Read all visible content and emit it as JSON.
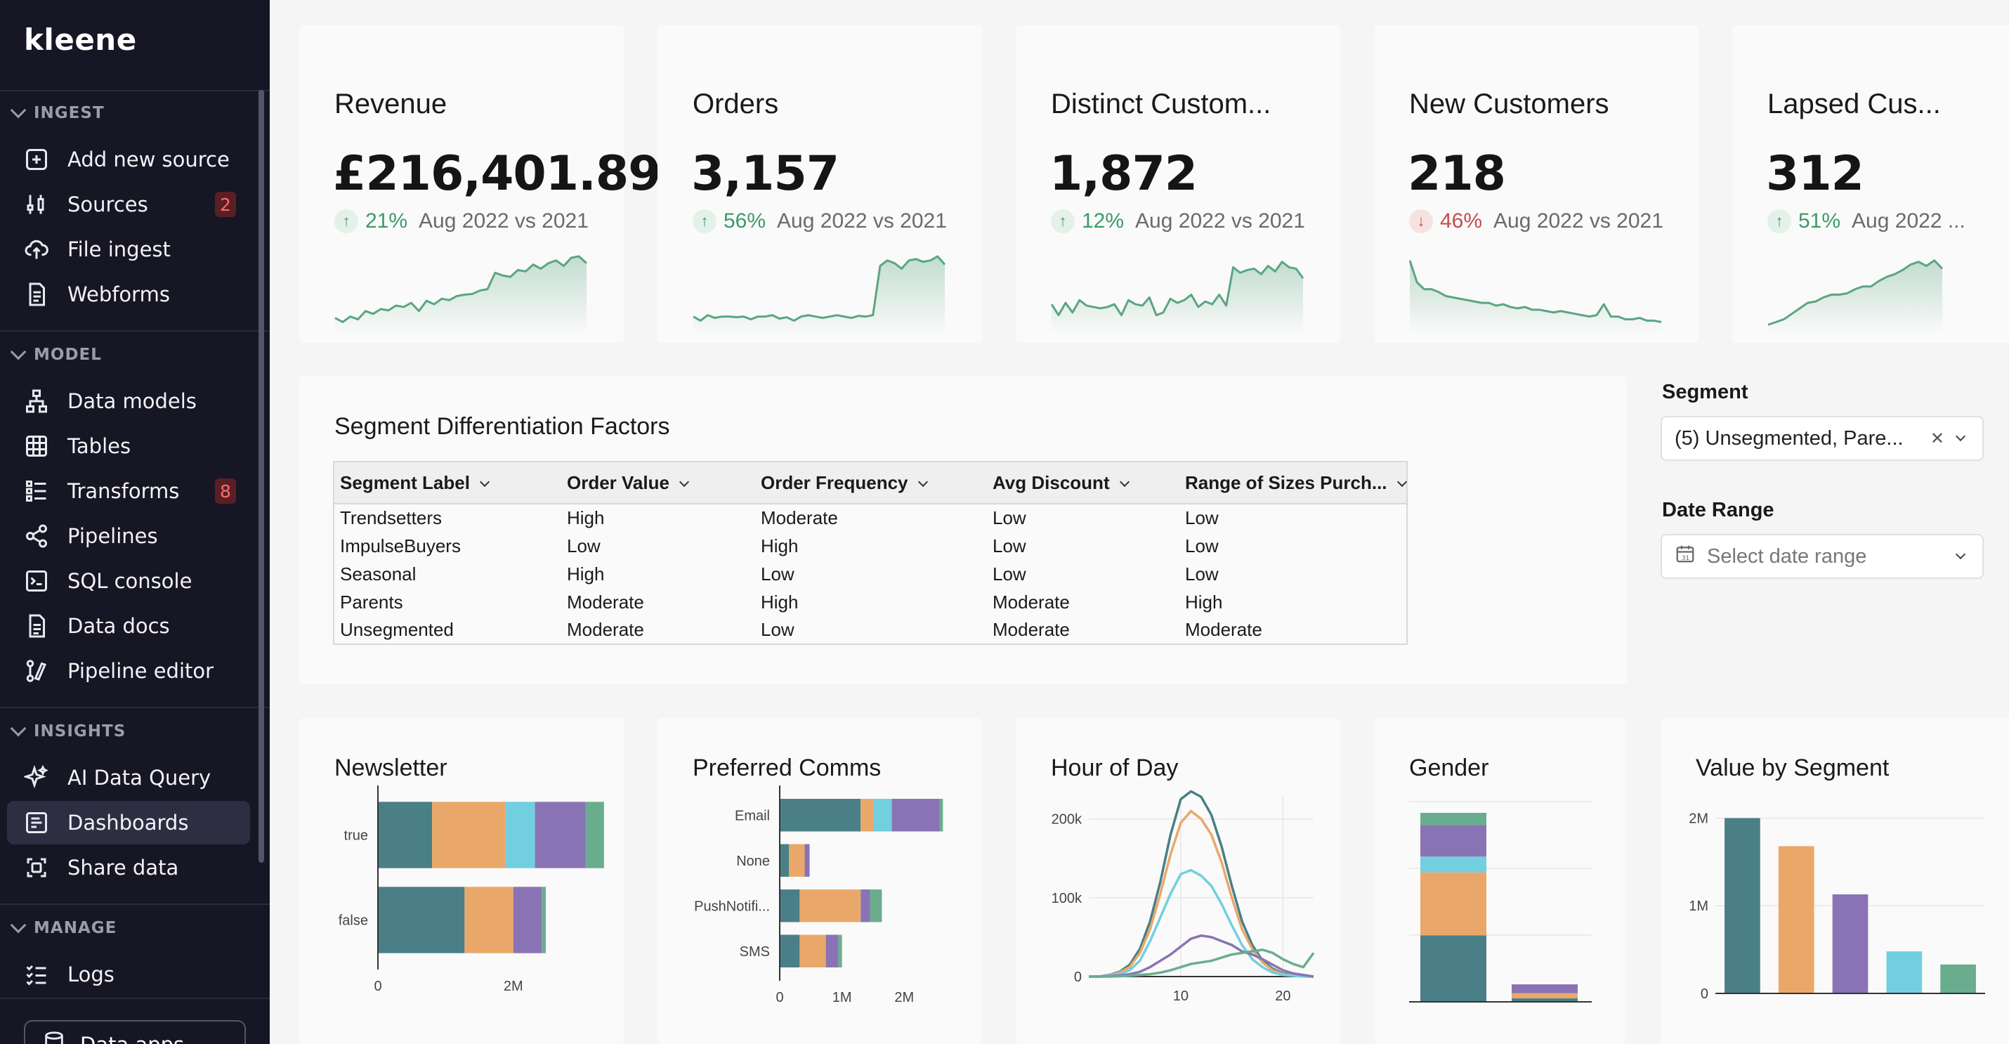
{
  "sidebar": {
    "logo": "kleene",
    "sections": {
      "ingest": "INGEST",
      "model": "MODEL",
      "insights": "INSIGHTS",
      "manage": "MANAGE"
    },
    "items": {
      "add_source": "Add new source",
      "sources": "Sources",
      "sources_badge": "2",
      "file_ingest": "File ingest",
      "webforms": "Webforms",
      "data_models": "Data models",
      "tables": "Tables",
      "transforms": "Transforms",
      "transforms_badge": "8",
      "pipelines": "Pipelines",
      "sql_console": "SQL console",
      "data_docs": "Data docs",
      "pipeline_editor": "Pipeline editor",
      "ai_query": "AI Data Query",
      "dashboards": "Dashboards",
      "share_data": "Share data",
      "logs": "Logs",
      "data_apps": "Data apps"
    }
  },
  "kpis": [
    {
      "title": "Revenue",
      "value": "£216,401.89",
      "direction": "up",
      "pct": "21%",
      "compare": "Aug 2022 vs 2021",
      "spark": [
        20,
        14,
        22,
        18,
        30,
        26,
        33,
        31,
        38,
        36,
        42,
        30,
        45,
        40,
        48,
        46,
        52,
        54,
        55,
        60,
        62,
        86,
        82,
        80,
        90,
        88,
        98,
        92,
        100,
        104,
        96,
        108,
        110,
        100
      ]
    },
    {
      "title": "Orders",
      "value": "3,157",
      "direction": "up",
      "pct": "56%",
      "compare": "Aug 2022 vs 2021",
      "spark": [
        22,
        16,
        24,
        20,
        22,
        22,
        21,
        22,
        18,
        22,
        22,
        24,
        19,
        21,
        16,
        22,
        24,
        22,
        20,
        22,
        24,
        22,
        20,
        23,
        22,
        24,
        96,
        104,
        100,
        92,
        104,
        106,
        102,
        104,
        110,
        98
      ]
    },
    {
      "title": "Distinct Custom...",
      "value": "1,872",
      "direction": "up",
      "pct": "12%",
      "compare": "Aug 2022 vs 2021",
      "spark": [
        40,
        24,
        42,
        28,
        46,
        38,
        36,
        34,
        36,
        40,
        24,
        46,
        40,
        38,
        50,
        24,
        28,
        48,
        42,
        46,
        54,
        36,
        44,
        40,
        54,
        38,
        94,
        86,
        90,
        92,
        84,
        96,
        88,
        102,
        94,
        92,
        78
      ]
    },
    {
      "title": "New Customers",
      "value": "218",
      "direction": "down",
      "pct": "46%",
      "compare": "Aug 2022 vs 2021",
      "spark": [
        104,
        72,
        62,
        62,
        58,
        52,
        50,
        48,
        46,
        44,
        42,
        42,
        38,
        40,
        36,
        34,
        36,
        32,
        32,
        30,
        28,
        30,
        28,
        26,
        24,
        22,
        24,
        40,
        22,
        22,
        18,
        18,
        20,
        16,
        16,
        14
      ]
    },
    {
      "title": "Lapsed Cus...",
      "value": "312",
      "direction": "up",
      "pct": "51%",
      "compare": "Aug 2022 ...",
      "spark": [
        10,
        14,
        18,
        26,
        34,
        42,
        44,
        50,
        54,
        54,
        56,
        62,
        66,
        66,
        74,
        80,
        84,
        90,
        98,
        102,
        96,
        104,
        92
      ]
    }
  ],
  "segment_table": {
    "title": "Segment Differentiation Factors",
    "columns": [
      "Segment Label",
      "Order Value",
      "Order Frequency",
      "Avg Discount",
      "Range of Sizes Purch..."
    ],
    "rows": [
      [
        "Trendsetters",
        "High",
        "Moderate",
        "Low",
        "Low"
      ],
      [
        "ImpulseBuyers",
        "Low",
        "High",
        "Low",
        "Low"
      ],
      [
        "Seasonal",
        "High",
        "Low",
        "Low",
        "Low"
      ],
      [
        "Parents",
        "Moderate",
        "High",
        "Moderate",
        "High"
      ],
      [
        "Unsegmented",
        "Moderate",
        "Low",
        "Moderate",
        "Moderate"
      ]
    ]
  },
  "filters": {
    "segment_label": "Segment",
    "segment_value": "(5) Unsegmented, Pare...",
    "date_label": "Date Range",
    "date_placeholder": "Select date range"
  },
  "colors": {
    "teal": "#4a7f87",
    "orange": "#e9a86a",
    "cyan": "#72cfe0",
    "purple": "#8a73b5",
    "green": "#6aad8e",
    "spark_green": "#5aa681",
    "sidebar_bg": "#161624"
  },
  "chart_data": [
    {
      "type": "bar",
      "orientation": "horizontal",
      "stacked": true,
      "title": "Newsletter",
      "categories": [
        "true",
        "false"
      ],
      "x_ticks": [
        "0",
        "2M"
      ],
      "xlim": [
        0,
        3300000
      ],
      "series": [
        {
          "values": [
            800000,
            1280000
          ]
        },
        {
          "values": [
            1080000,
            720000
          ]
        },
        {
          "values": [
            440000,
            0
          ]
        },
        {
          "values": [
            750000,
            420000
          ]
        },
        {
          "values": [
            270000,
            60000
          ]
        }
      ]
    },
    {
      "type": "bar",
      "orientation": "horizontal",
      "stacked": true,
      "title": "Preferred Comms",
      "categories": [
        "Email",
        "None",
        "PushNotifi...",
        "SMS"
      ],
      "x_ticks": [
        "0",
        "1M",
        "2M"
      ],
      "xlim": [
        0,
        3000000
      ],
      "series": [
        {
          "values": [
            1300000,
            150000,
            320000,
            320000
          ]
        },
        {
          "values": [
            200000,
            250000,
            980000,
            420000
          ]
        },
        {
          "values": [
            300000,
            0,
            0,
            0
          ]
        },
        {
          "values": [
            770000,
            80000,
            150000,
            200000
          ]
        },
        {
          "values": [
            50000,
            0,
            190000,
            60000
          ]
        }
      ]
    },
    {
      "type": "line",
      "title": "Hour of Day",
      "x_ticks": [
        "10",
        "20"
      ],
      "y_ticks": [
        "0",
        "100k",
        "200k"
      ],
      "xlim": [
        0,
        23
      ],
      "ylim": [
        0,
        230000
      ],
      "x": [
        1,
        2,
        3,
        4,
        5,
        6,
        7,
        8,
        9,
        10,
        11,
        12,
        13,
        14,
        15,
        16,
        17,
        18,
        19,
        20,
        21,
        22,
        23
      ],
      "series": [
        {
          "values": [
            0,
            0,
            2000,
            6000,
            15000,
            35000,
            70000,
            120000,
            180000,
            225000,
            235000,
            228000,
            205000,
            165000,
            115000,
            70000,
            40000,
            20000,
            10000,
            4000,
            2000,
            1000,
            0
          ]
        },
        {
          "values": [
            0,
            0,
            1500,
            5000,
            12000,
            30000,
            60000,
            105000,
            155000,
            195000,
            210000,
            200000,
            180000,
            145000,
            100000,
            60000,
            35000,
            18000,
            8000,
            3000,
            1500,
            500,
            0
          ]
        },
        {
          "values": [
            0,
            0,
            1000,
            3000,
            8000,
            20000,
            45000,
            75000,
            105000,
            130000,
            135000,
            128000,
            115000,
            92000,
            65000,
            40000,
            22000,
            12000,
            5000,
            2000,
            1000,
            0,
            0
          ]
        },
        {
          "values": [
            0,
            0,
            500,
            1500,
            3000,
            6000,
            12000,
            20000,
            28000,
            38000,
            48000,
            52000,
            50000,
            45000,
            40000,
            32000,
            28000,
            22000,
            15000,
            8000,
            4000,
            2000,
            0
          ]
        },
        {
          "values": [
            0,
            0,
            0,
            500,
            1000,
            2000,
            3000,
            5000,
            8000,
            12000,
            16000,
            18000,
            20000,
            24000,
            28000,
            30000,
            32000,
            34000,
            30000,
            22000,
            16000,
            12000,
            30000
          ]
        }
      ]
    },
    {
      "type": "bar",
      "stacked": true,
      "title": "Gender",
      "categories": [
        "",
        ""
      ],
      "ylim": [
        0,
        110
      ],
      "series": [
        {
          "values": [
            38,
            2
          ]
        },
        {
          "values": [
            36,
            3
          ]
        },
        {
          "values": [
            9,
            0
          ]
        },
        {
          "values": [
            18,
            5
          ]
        },
        {
          "values": [
            7,
            0
          ]
        }
      ]
    },
    {
      "type": "bar",
      "title": "Value by Segment",
      "categories": [
        "",
        "",
        "",
        "",
        ""
      ],
      "y_ticks": [
        "0",
        "1M",
        "2M"
      ],
      "ylim": [
        0,
        2100000
      ],
      "values": [
        2000000,
        1680000,
        1130000,
        480000,
        330000
      ],
      "colors": [
        "#4a7f87",
        "#e9a86a",
        "#8a73b5",
        "#72cfe0",
        "#6aad8e"
      ]
    }
  ]
}
